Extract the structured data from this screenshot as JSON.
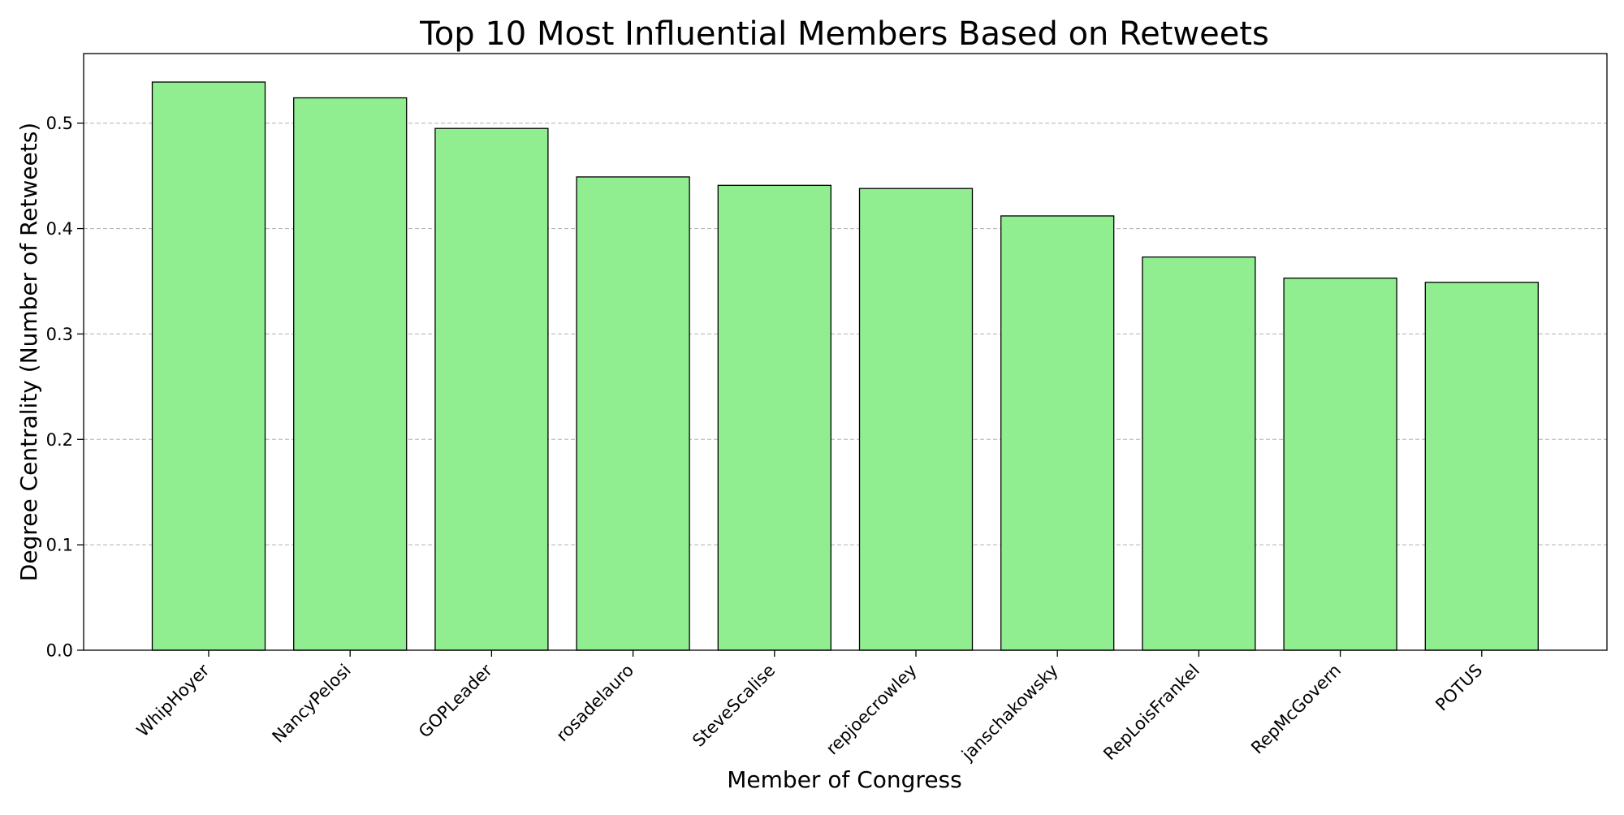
{
  "chart_data": {
    "type": "bar",
    "title": "Top 10 Most Influential Members Based on Retweets",
    "xlabel": "Member of Congress",
    "ylabel": "Degree Centrality (Number of Retweets)",
    "categories": [
      "WhipHoyer",
      "NancyPelosi",
      "GOPLeader",
      "rosadelauro",
      "SteveScalise",
      "repjoecrowley",
      "janschakowsky",
      "RepLoisFrankel",
      "RepMcGovern",
      "POTUS"
    ],
    "values": [
      0.539,
      0.524,
      0.495,
      0.449,
      0.441,
      0.438,
      0.412,
      0.373,
      0.353,
      0.349
    ],
    "ylim": [
      0,
      0.566
    ],
    "yticks": [
      0.0,
      0.1,
      0.2,
      0.3,
      0.4,
      0.5
    ],
    "ytick_labels": [
      "0.0",
      "0.1",
      "0.2",
      "0.3",
      "0.4",
      "0.5"
    ],
    "grid": "y-dashed",
    "bar_color": "#90ee90",
    "edge_color": "#000000",
    "grid_color": "#b0b0b0"
  }
}
